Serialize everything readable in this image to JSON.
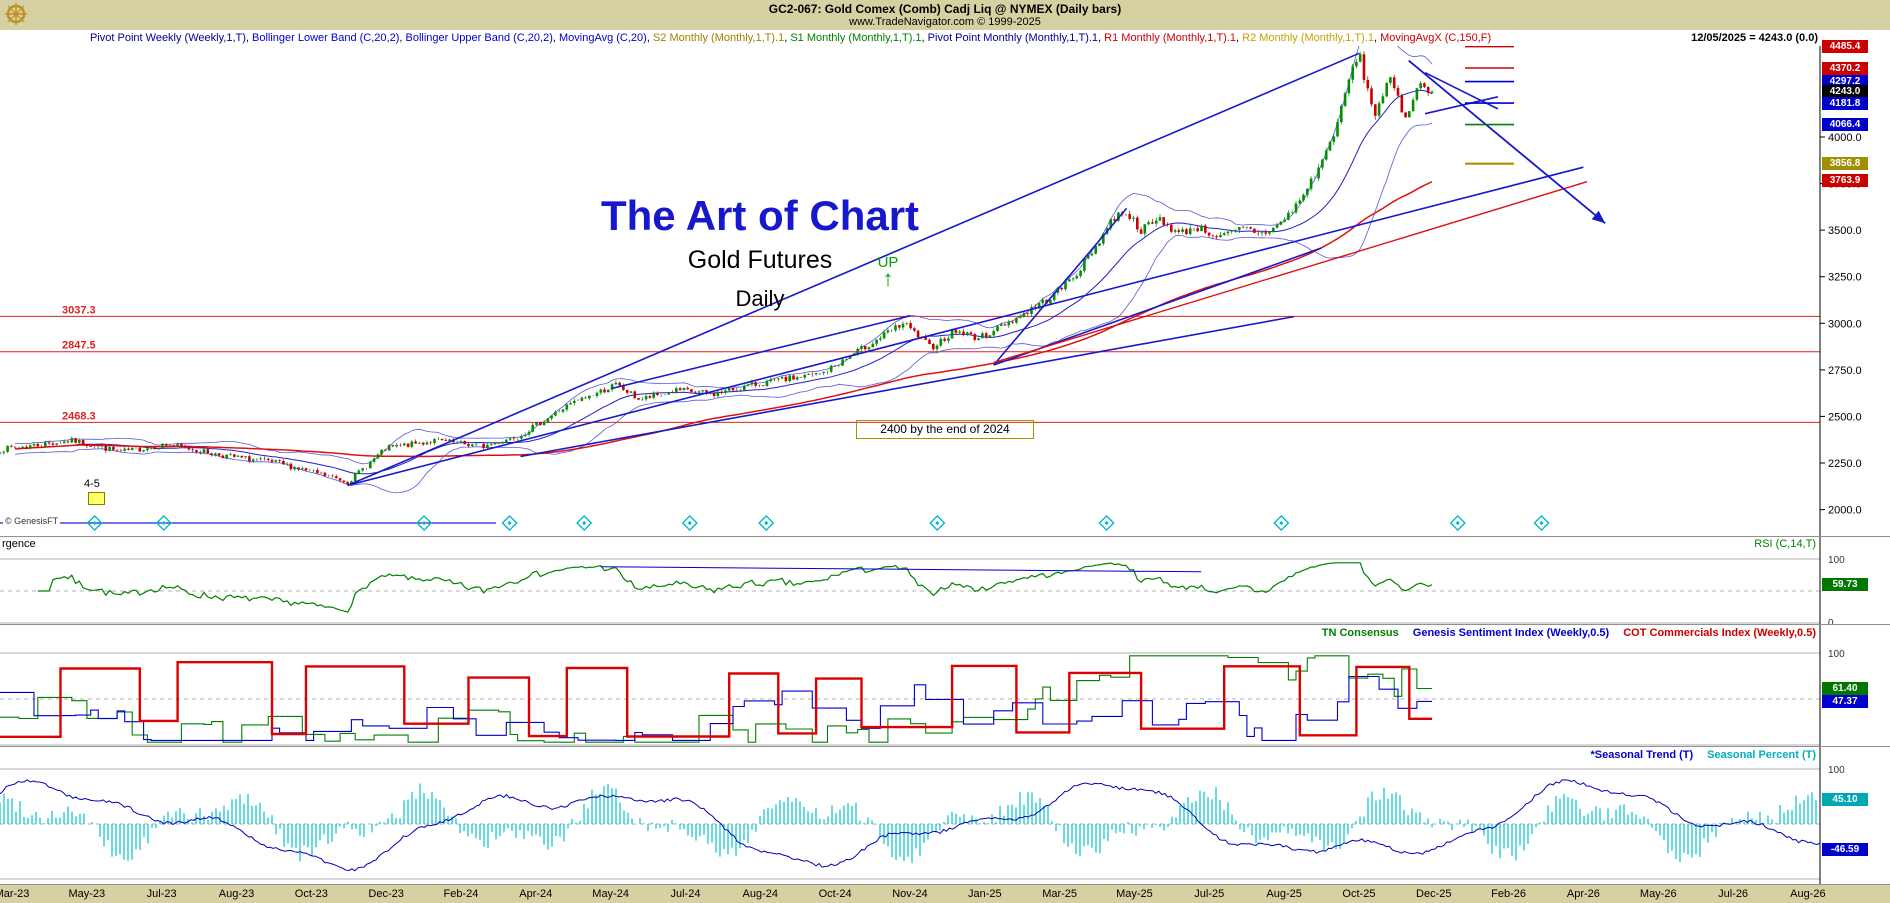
{
  "header": {
    "title": "GC2-067:  Gold Comex (Comb) Cadj Liq @ NYMEX  (Daily bars)",
    "subtitle": "www.TradeNavigator.com © 1999-2025"
  },
  "legend": {
    "items": [
      {
        "label": "Pivot Point Weekly (Weekly,1,T)",
        "color": "#000090"
      },
      {
        "label": "Bollinger Lower Band (C,20,2)",
        "color": "#0000d0"
      },
      {
        "label": "Bollinger Upper Band (C,20,2)",
        "color": "#0000d0"
      },
      {
        "label": "MovingAvg (C,20)",
        "color": "#0000d0"
      },
      {
        "label": "S2 Monthly (Monthly,1,T).1",
        "color": "#a08000"
      },
      {
        "label": "S1 Monthly (Monthly,1,T).1",
        "color": "#008000"
      },
      {
        "label": "Pivot Point Monthly (Monthly,1,T).1",
        "color": "#000090"
      },
      {
        "label": "R1 Monthly (Monthly,1,T).1",
        "color": "#d00000"
      },
      {
        "label": "R2 Monthly (Monthly,1,T).1",
        "color": "#c8a000"
      },
      {
        "label": "MovingAvgX (C,150,F)",
        "color": "#d00000"
      }
    ],
    "date_value": "12/05/2025 = 4243.0 (0.0)"
  },
  "chart_data": {
    "type": "candlestick",
    "symbol": "GC2-067",
    "instrument": "Gold Comex (Comb) Cadj Liq @ NYMEX",
    "timeframe": "Daily bars",
    "x_labels": [
      "Mar-23",
      "May-23",
      "Jul-23",
      "Aug-23",
      "Oct-23",
      "Dec-23",
      "Feb-24",
      "Apr-24",
      "May-24",
      "Jul-24",
      "Aug-24",
      "Oct-24",
      "Nov-24",
      "Jan-25",
      "Mar-25",
      "May-25",
      "Jul-25",
      "Aug-25",
      "Oct-25",
      "Dec-25",
      "Feb-26",
      "Apr-26",
      "May-26",
      "Jul-26",
      "Aug-26"
    ],
    "main": {
      "y_ticks": [
        4000,
        3750,
        3500,
        3250,
        3000,
        2750,
        2500,
        2250,
        2000
      ],
      "last_close": 4243.0,
      "last_date": "12/05/2025",
      "bars": 380,
      "close_keypoints": [
        [
          0,
          2320
        ],
        [
          0.007,
          2330
        ],
        [
          0.051,
          2370
        ],
        [
          0.084,
          2310
        ],
        [
          0.118,
          2350
        ],
        [
          0.156,
          2290
        ],
        [
          0.194,
          2250
        ],
        [
          0.243,
          2150
        ],
        [
          0.27,
          2330
        ],
        [
          0.304,
          2370
        ],
        [
          0.338,
          2340
        ],
        [
          0.363,
          2400
        ],
        [
          0.397,
          2560
        ],
        [
          0.43,
          2670
        ],
        [
          0.447,
          2590
        ],
        [
          0.473,
          2640
        ],
        [
          0.498,
          2620
        ],
        [
          0.523,
          2665
        ],
        [
          0.549,
          2700
        ],
        [
          0.574,
          2730
        ],
        [
          0.591,
          2810
        ],
        [
          0.616,
          2930
        ],
        [
          0.631,
          3000
        ],
        [
          0.65,
          2870
        ],
        [
          0.667,
          2960
        ],
        [
          0.684,
          2920
        ],
        [
          0.7,
          2990
        ],
        [
          0.717,
          3060
        ],
        [
          0.734,
          3140
        ],
        [
          0.751,
          3260
        ],
        [
          0.764,
          3400
        ],
        [
          0.776,
          3550
        ],
        [
          0.785,
          3610
        ],
        [
          0.797,
          3500
        ],
        [
          0.81,
          3560
        ],
        [
          0.823,
          3480
        ],
        [
          0.835,
          3520
        ],
        [
          0.852,
          3460
        ],
        [
          0.869,
          3510
        ],
        [
          0.882,
          3480
        ],
        [
          0.895,
          3540
        ],
        [
          0.907,
          3650
        ],
        [
          0.92,
          3820
        ],
        [
          0.928,
          3950
        ],
        [
          0.937,
          4150
        ],
        [
          0.943,
          4340
        ],
        [
          0.949,
          4445
        ],
        [
          0.955,
          4250
        ],
        [
          0.96,
          4120
        ],
        [
          0.967,
          4260
        ],
        [
          0.972,
          4300
        ],
        [
          0.977,
          4180
        ],
        [
          0.982,
          4100
        ],
        [
          0.987,
          4230
        ],
        [
          0.994,
          4290
        ],
        [
          1,
          4243
        ]
      ],
      "hlines": [
        {
          "price": 3037.3,
          "label": "3037.3",
          "color": "#dd2222"
        },
        {
          "price": 2847.5,
          "label": "2847.5",
          "color": "#dd2222"
        },
        {
          "price": 2468.3,
          "label": "2468.3",
          "color": "#dd2222"
        }
      ],
      "badges": [
        {
          "value": "4485.4",
          "price": 4485.4,
          "color": "#cc0000"
        },
        {
          "value": "4370.2",
          "price": 4370.2,
          "color": "#cc0000"
        },
        {
          "value": "4297.2",
          "price": 4297.2,
          "color": "#0000cc"
        },
        {
          "value": "4243.0",
          "price": 4243.0,
          "color": "#000000"
        },
        {
          "value": "4181.8",
          "price": 4181.8,
          "color": "#0000cc"
        },
        {
          "value": "4066.4",
          "price": 4066.4,
          "color": "#0000cc"
        },
        {
          "value": "3856.8",
          "price": 3856.8,
          "color": "#a09000"
        },
        {
          "value": "3763.9",
          "price": 3763.9,
          "color": "#cc0000"
        }
      ],
      "pivot_segments": [
        {
          "price": 4485.4,
          "color": "#cc0000"
        },
        {
          "price": 4370.2,
          "color": "#cc0000"
        },
        {
          "price": 4297.2,
          "color": "#0000cc"
        },
        {
          "price": 4181.8,
          "color": "#0000cc"
        },
        {
          "price": 4066.4,
          "color": "#008000"
        },
        {
          "price": 3856.8,
          "color": "#b09000",
          "w": 2.2
        }
      ],
      "trendlines": [
        {
          "x1": 0.191,
          "p1": 2130,
          "x2": 0.87,
          "p2": 3838
        },
        {
          "x1": 0.191,
          "p1": 2130,
          "x2": 0.747,
          "p2": 4450
        },
        {
          "x1": 0.336,
          "p1": 2650,
          "x2": 0.5,
          "p2": 3040
        },
        {
          "x1": 0.286,
          "p1": 2285,
          "x2": 0.711,
          "p2": 3036
        },
        {
          "x1": 0.546,
          "p1": 2776,
          "x2": 0.619,
          "p2": 3617
        },
        {
          "x1": 0.546,
          "p1": 2776,
          "x2": 0.726,
          "p2": 3404
        },
        {
          "x1": 0.783,
          "p1": 4345,
          "x2": 0.823,
          "p2": 4151
        },
        {
          "x1": 0.783,
          "p1": 4125,
          "x2": 0.823,
          "p2": 4216
        },
        {
          "x1": 0.546,
          "p1": 2789,
          "x2": 0.872,
          "p2": 3760,
          "color": "#dd1111",
          "w": 1.4
        }
      ],
      "arrow": {
        "x1": 0.774,
        "p1": 4410,
        "x2": 0.882,
        "p2": 3537,
        "color": "#1818cc"
      },
      "diamonds": [
        0.052,
        0.09,
        0.233,
        0.28,
        0.321,
        0.379,
        0.421,
        0.515,
        0.608,
        0.704,
        0.801,
        0.847
      ],
      "annotations": {
        "title": "The Art of Chart",
        "subtitle": "Gold Futures",
        "timeframe": "Daily",
        "up_label": "UP",
        "up_arrow": "↑",
        "target_note": "2400 by the end of 2024",
        "gap_label": "4-5",
        "genesis_label": "© GenesisFT"
      }
    },
    "rsi": {
      "left_label": "rgence",
      "series_label": "RSI (C,14,T)",
      "label_color": "#008000",
      "scale_top": "100",
      "scale_bottom": "0",
      "last_value": 59.73,
      "badge": {
        "value": "59.73",
        "color": "#007800"
      },
      "divergence_line": {
        "x1": 0.33,
        "v1": 88,
        "x2": 0.66,
        "v2": 80
      }
    },
    "consensus": {
      "labels": [
        {
          "text": "TN Consensus",
          "color": "#008000"
        },
        {
          "text": "Genesis Sentiment Index (Weekly,0.5)",
          "color": "#0000cc"
        },
        {
          "text": "COT Commercials Index (Weekly,0.5)",
          "color": "#cc0000"
        }
      ],
      "scale_top": "100",
      "badges": [
        {
          "value": "61.40",
          "v": 61.4,
          "color": "#007800"
        },
        {
          "value": "47.37",
          "v": 47.37,
          "color": "#0000cc"
        }
      ]
    },
    "seasonal": {
      "labels": [
        {
          "text": "*Seasonal Trend (T)",
          "color": "#0000cc"
        },
        {
          "text": "Seasonal Percent (T)",
          "color": "#00b0c0"
        }
      ],
      "scale_top": "100",
      "badges": [
        {
          "value": "45.10",
          "v": 45.1,
          "color": "#00a8b4"
        },
        {
          "value": "-46.59",
          "v": -46.59,
          "color": "#0000cc"
        }
      ]
    }
  }
}
